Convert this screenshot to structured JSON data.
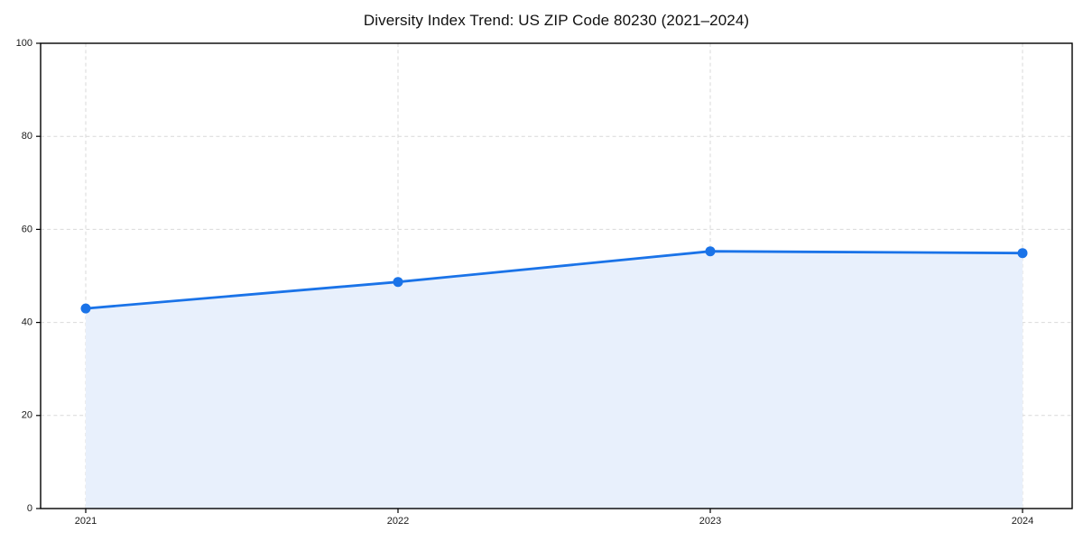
{
  "page": {
    "background_color": "#ffffff"
  },
  "chart_data": {
    "type": "area",
    "title": "Diversity Index Trend: US ZIP Code 80230 (2021–2024)",
    "categories": [
      "2021",
      "2022",
      "2023",
      "2024"
    ],
    "series": [
      {
        "name": "Diversity Index",
        "values": [
          43.0,
          48.7,
          55.3,
          54.9
        ]
      }
    ],
    "xlabel": "",
    "ylabel": "",
    "ylim": [
      0,
      100
    ],
    "y_ticks": [
      0,
      20,
      40,
      60,
      80,
      100
    ],
    "grid": {
      "visible": true,
      "style": "dashed",
      "axes": "both",
      "color": "#d9d9d9"
    },
    "legend_position": "none",
    "line_color": "#1a73e8",
    "fill_color": "#e8f0fc",
    "marker": "circle",
    "spine_color": "#000000"
  }
}
